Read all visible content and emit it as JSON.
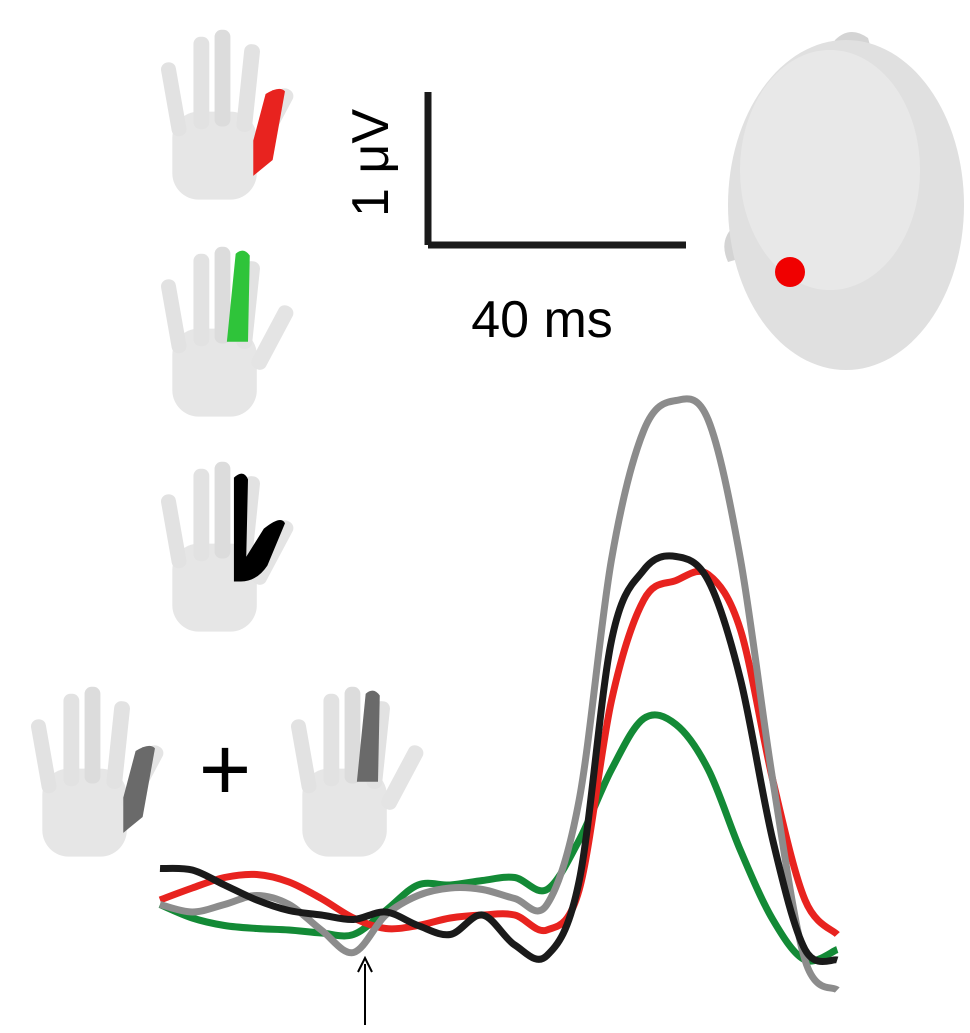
{
  "chart_data": {
    "type": "line",
    "scale_bar": {
      "x": {
        "value": 40,
        "label": "40 ms"
      },
      "y": {
        "value": 1,
        "label": "1 μV"
      }
    },
    "annotations": [
      "+"
    ],
    "x": [
      0,
      5,
      10,
      15,
      20,
      25,
      30,
      35,
      40,
      45,
      50,
      55,
      60,
      65,
      70,
      75,
      80,
      85,
      90,
      95,
      100,
      105
    ],
    "series": [
      {
        "color": "#138a36",
        "values": [
          0.07,
          -0.02,
          -0.07,
          -0.09,
          -0.1,
          -0.12,
          -0.13,
          0.03,
          0.2,
          0.2,
          0.23,
          0.25,
          0.17,
          0.5,
          0.97,
          1.31,
          1.27,
          0.97,
          0.43,
          -0.03,
          -0.3,
          -0.23
        ]
      },
      {
        "color": "#e8231f",
        "values": [
          0.1,
          0.18,
          0.25,
          0.27,
          0.22,
          0.11,
          -0.02,
          -0.09,
          -0.07,
          -0.02,
          0,
          0,
          -0.1,
          0.17,
          1.43,
          2.1,
          2.23,
          2.27,
          1.9,
          0.9,
          0.1,
          -0.13
        ]
      },
      {
        "color": "#8c8c8c",
        "values": [
          0.07,
          0.02,
          0.07,
          0.13,
          0.07,
          -0.1,
          -0.25,
          0,
          0.13,
          0.18,
          0.17,
          0.11,
          0.07,
          0.77,
          2.37,
          3.23,
          3.43,
          3.3,
          2.37,
          0.9,
          -0.3,
          -0.5
        ]
      },
      {
        "color": "#1a1a1a",
        "values": [
          0.31,
          0.3,
          0.2,
          0.1,
          0.03,
          0,
          -0.03,
          0.02,
          -0.07,
          -0.13,
          0,
          -0.2,
          -0.27,
          0.23,
          1.83,
          2.3,
          2.39,
          2.23,
          1.57,
          0.5,
          -0.23,
          -0.3
        ]
      }
    ]
  }
}
